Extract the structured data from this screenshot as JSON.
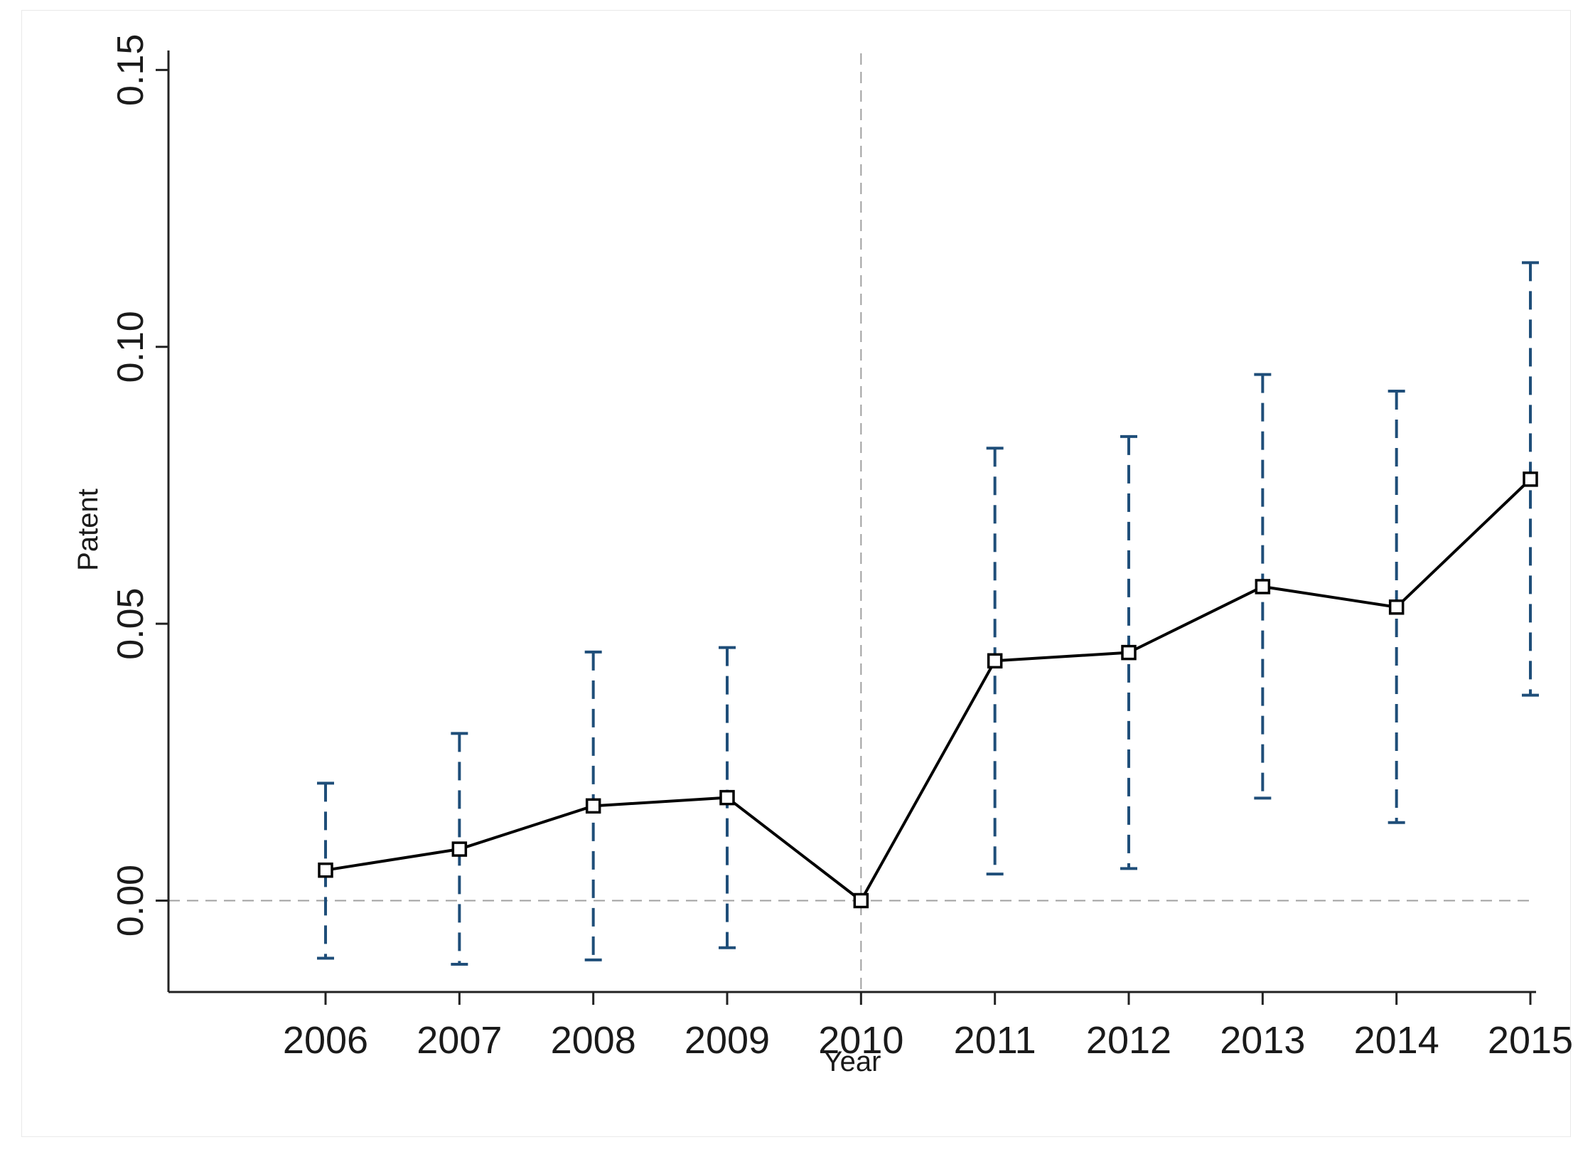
{
  "chart_data": {
    "type": "line",
    "title": "",
    "xlabel": "Year",
    "ylabel": "Patent",
    "x": [
      "2006",
      "2007",
      "2008",
      "2009",
      "2010",
      "2011",
      "2012",
      "2013",
      "2014",
      "2015"
    ],
    "series": [
      {
        "values": [
          0.0055,
          0.0093,
          0.0171,
          0.0186,
          0.0,
          0.0433,
          0.0448,
          0.0567,
          0.053,
          0.0761
        ],
        "ci_lower": [
          -0.0104,
          -0.0115,
          -0.0107,
          -0.0085,
          null,
          0.0048,
          0.0058,
          0.0185,
          0.0141,
          0.0371
        ],
        "ci_upper": [
          0.0212,
          0.0302,
          0.0449,
          0.0457,
          null,
          0.0817,
          0.0838,
          0.095,
          0.092,
          0.1152
        ],
        "line_color": "#000000",
        "ci_color": "#1f4e79",
        "marker": "hollow-square"
      }
    ],
    "ylim": [
      -0.0165,
      0.153
    ],
    "yticks": [
      "0.00",
      "0.05",
      "0.10",
      "0.15"
    ],
    "ytick_values": [
      0.0,
      0.05,
      0.1,
      0.15
    ],
    "reference_lines": {
      "horizontal_y": 0.0,
      "vertical_x": "2010",
      "style": "dashed",
      "color": "#a0a0a0"
    },
    "grid": false,
    "legend": "none"
  }
}
